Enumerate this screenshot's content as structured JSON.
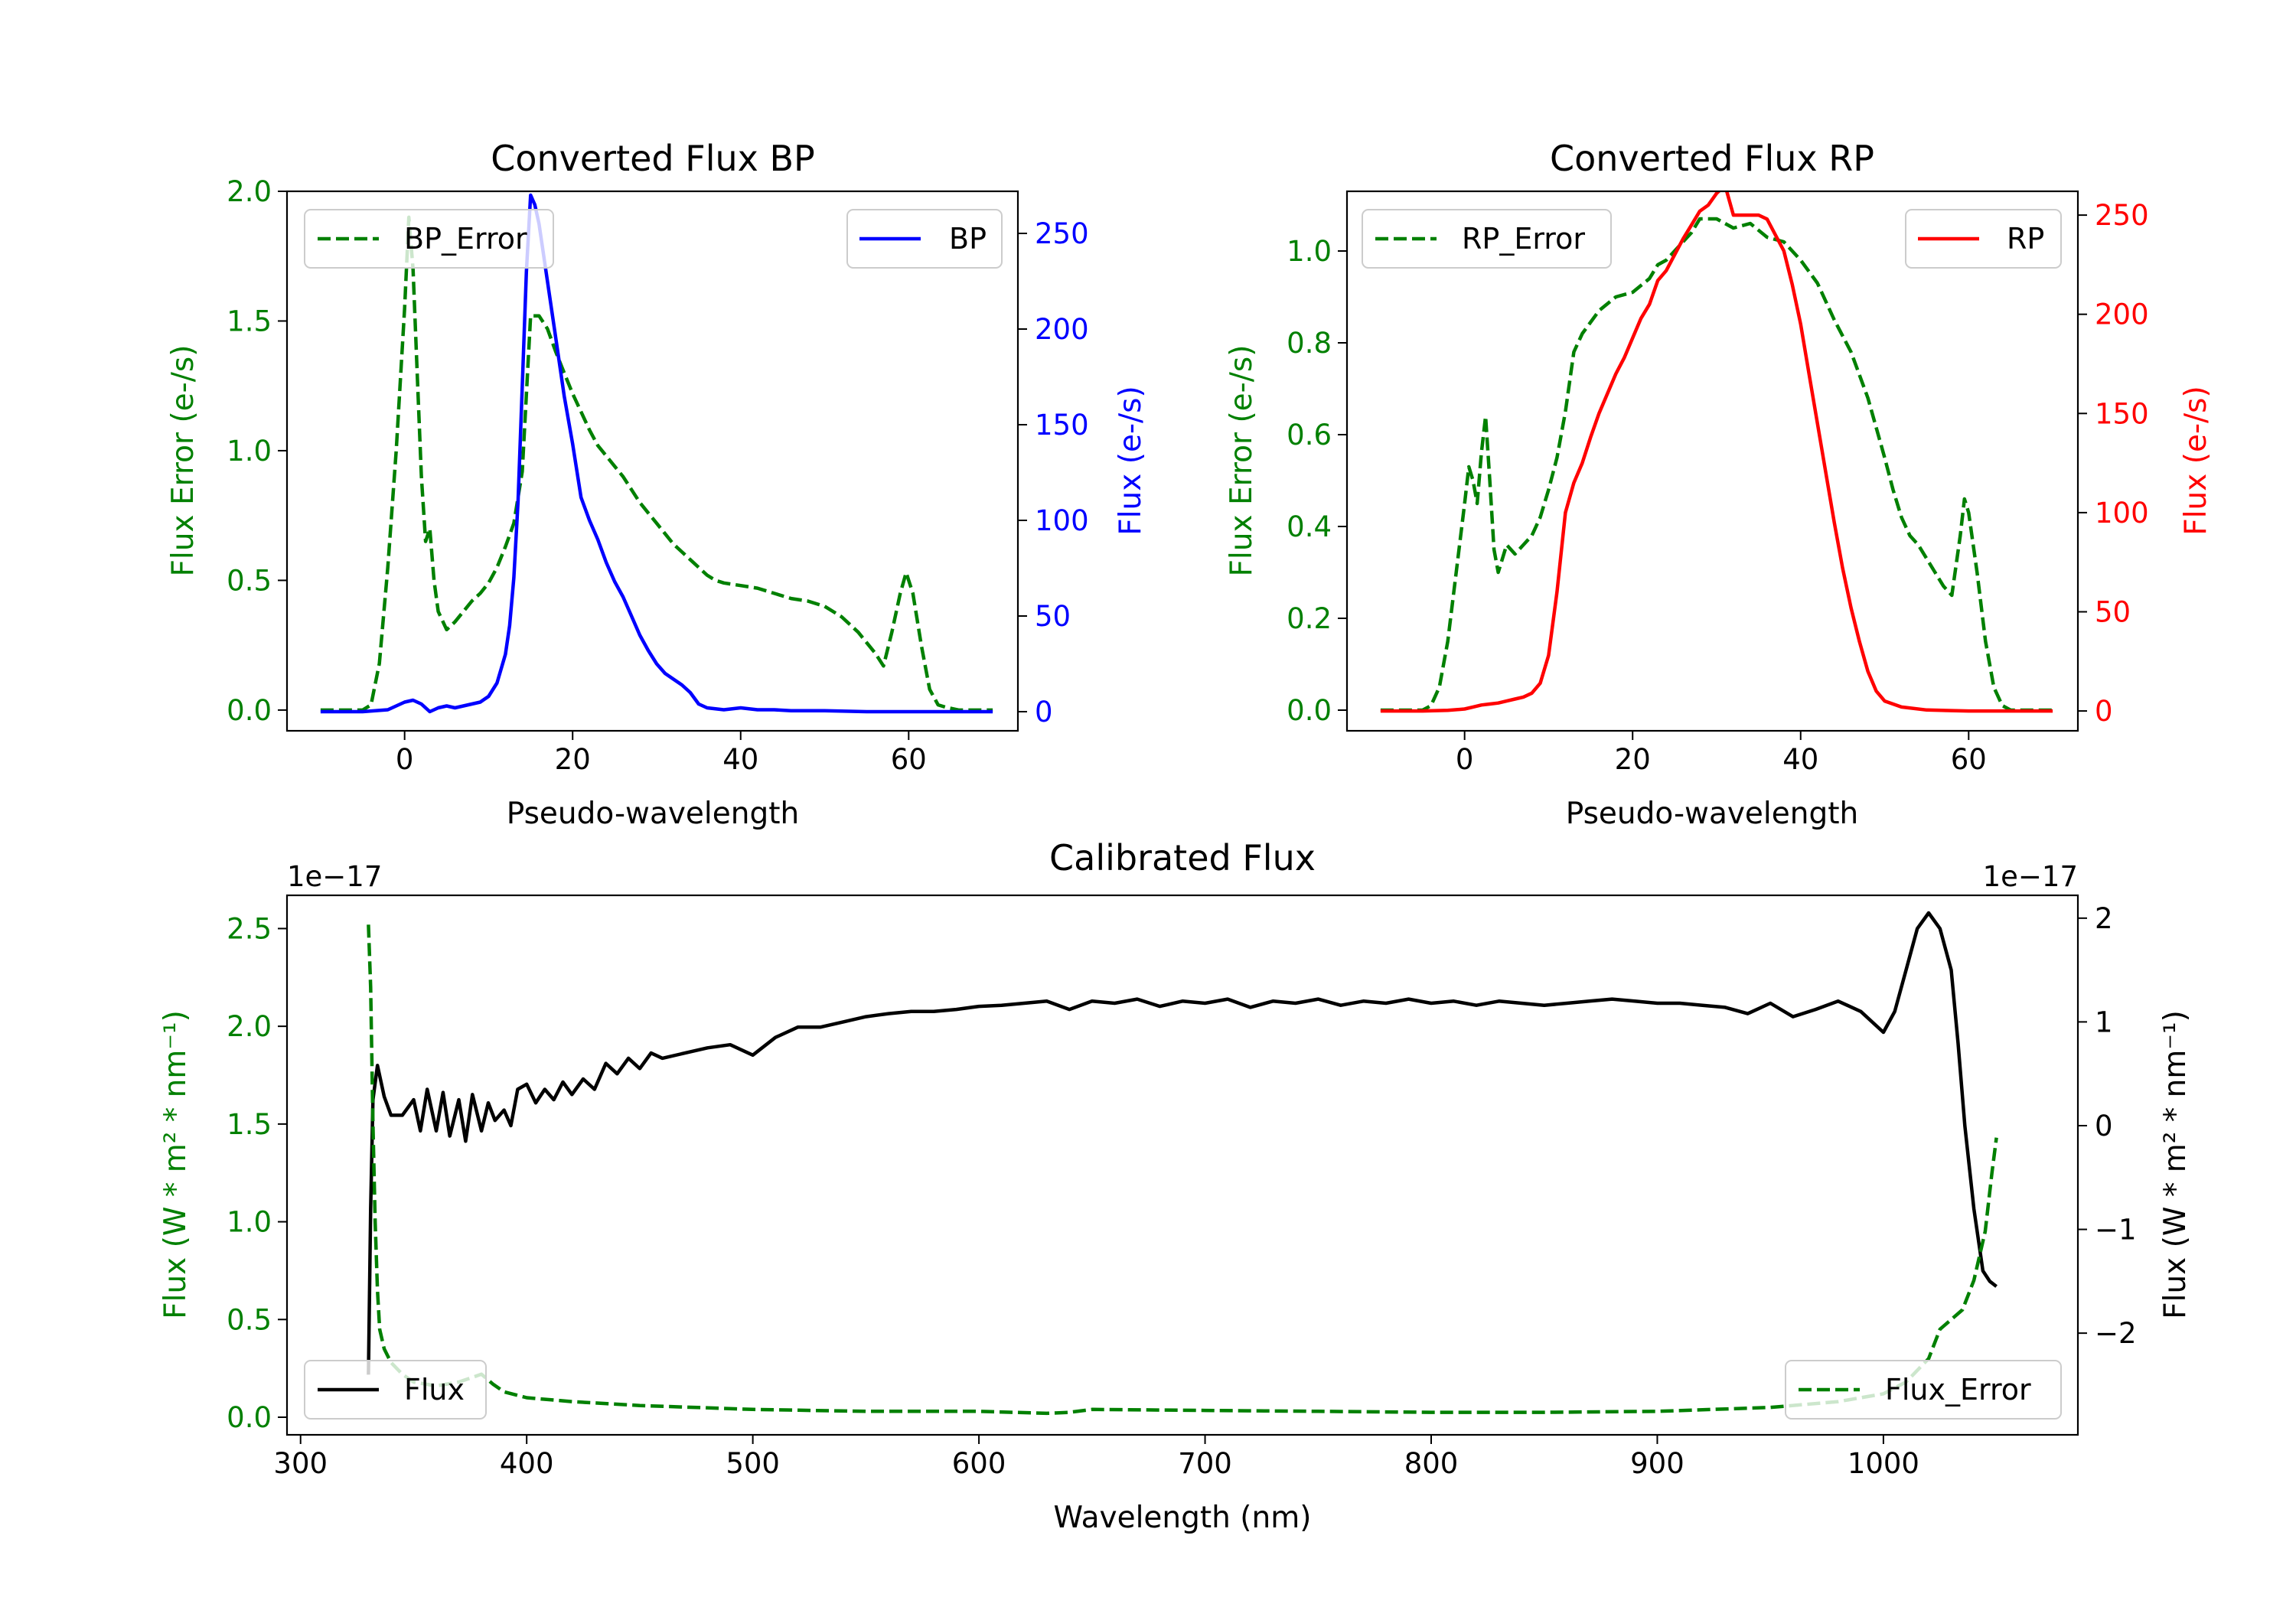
{
  "colors": {
    "green": "#008000",
    "blue": "#0000ff",
    "red": "#ff0000",
    "black": "#000000"
  },
  "chart_data": [
    {
      "id": "bp",
      "type": "line",
      "title": "Converted Flux BP",
      "xlabel": "Pseudo-wavelength",
      "xlim": [
        -14,
        73
      ],
      "xticks": [
        0,
        20,
        40,
        60
      ],
      "left_axis": {
        "label": "Flux Error (e-/s)",
        "color": "#008000",
        "ylim": [
          -0.08,
          2.0
        ],
        "ticks": [
          0.0,
          0.5,
          1.0,
          1.5,
          2.0
        ],
        "tick_labels": [
          "0.0",
          "0.5",
          "1.0",
          "1.5",
          "2.0"
        ]
      },
      "right_axis": {
        "label": "Flux (e-/s)",
        "color": "#0000ff",
        "ylim": [
          -10,
          272
        ],
        "ticks": [
          0,
          50,
          100,
          150,
          200,
          250
        ],
        "tick_labels": [
          "0",
          "50",
          "100",
          "150",
          "200",
          "250"
        ]
      },
      "series": [
        {
          "name": "BP_Error",
          "axis": "left",
          "style": "dashed",
          "color": "#008000",
          "x": [
            -10,
            -5,
            -4,
            -3,
            -2,
            -1,
            0,
            0.5,
            1,
            1.5,
            2,
            2.5,
            3,
            3.5,
            4,
            5,
            6,
            7,
            8,
            9,
            10,
            11,
            12,
            13,
            14,
            15,
            16,
            17,
            18,
            19,
            20,
            21,
            22,
            23,
            24,
            25,
            26,
            27,
            28,
            29,
            30,
            31,
            32,
            33,
            34,
            35,
            36,
            37,
            38,
            40,
            42,
            44,
            46,
            48,
            50,
            52,
            54,
            55,
            56,
            57,
            58,
            59,
            59.7,
            60.5,
            61.5,
            62.5,
            63.5,
            64.5,
            66,
            70
          ],
          "values": [
            0,
            0,
            0.02,
            0.18,
            0.55,
            1.0,
            1.55,
            1.9,
            1.7,
            1.3,
            0.9,
            0.65,
            0.7,
            0.5,
            0.38,
            0.31,
            0.34,
            0.38,
            0.42,
            0.45,
            0.49,
            0.55,
            0.63,
            0.72,
            0.92,
            1.52,
            1.52,
            1.47,
            1.38,
            1.3,
            1.22,
            1.15,
            1.08,
            1.02,
            0.98,
            0.94,
            0.9,
            0.85,
            0.8,
            0.76,
            0.72,
            0.68,
            0.64,
            0.61,
            0.58,
            0.55,
            0.52,
            0.5,
            0.49,
            0.48,
            0.47,
            0.45,
            0.43,
            0.42,
            0.4,
            0.36,
            0.3,
            0.26,
            0.22,
            0.17,
            0.3,
            0.45,
            0.53,
            0.45,
            0.25,
            0.08,
            0.02,
            0.01,
            0,
            0
          ]
        },
        {
          "name": "BP",
          "axis": "right",
          "style": "solid",
          "color": "#0000ff",
          "x": [
            -10,
            -5,
            -2,
            0,
            1,
            2,
            3,
            4,
            5,
            6,
            7,
            8,
            9,
            10,
            11,
            12,
            12.5,
            13,
            13.5,
            14,
            14.5,
            15,
            15.5,
            16,
            17,
            18,
            19,
            20,
            21,
            22,
            23,
            24,
            25,
            26,
            27,
            28,
            29,
            30,
            31,
            32,
            33,
            34,
            35,
            36,
            38,
            40,
            42,
            44,
            46,
            48,
            50,
            55,
            60,
            70
          ],
          "values": [
            0,
            0,
            1,
            5,
            6,
            4,
            0,
            2,
            3,
            2,
            3,
            4,
            5,
            8,
            15,
            30,
            45,
            70,
            110,
            170,
            230,
            270,
            265,
            255,
            225,
            195,
            165,
            140,
            112,
            100,
            90,
            78,
            68,
            60,
            50,
            40,
            32,
            25,
            20,
            17,
            14,
            10,
            4,
            2,
            1,
            2,
            1,
            1,
            0.5,
            0.5,
            0.5,
            0,
            0,
            0
          ]
        }
      ],
      "legends": [
        {
          "placement": "upper-left",
          "label": "BP_Error",
          "style": "dashed",
          "color": "#008000"
        },
        {
          "placement": "upper-right",
          "label": "BP",
          "style": "solid",
          "color": "#0000ff"
        }
      ]
    },
    {
      "id": "rp",
      "type": "line",
      "title": "Converted Flux RP",
      "xlabel": "Pseudo-wavelength",
      "xlim": [
        -14,
        73
      ],
      "xticks": [
        0,
        20,
        40,
        60
      ],
      "left_axis": {
        "label": "Flux Error (e-/s)",
        "color": "#008000",
        "ylim": [
          -0.045,
          1.13
        ],
        "ticks": [
          0.0,
          0.2,
          0.4,
          0.6,
          0.8,
          1.0
        ],
        "tick_labels": [
          "0.0",
          "0.2",
          "0.4",
          "0.6",
          "0.8",
          "1.0"
        ]
      },
      "right_axis": {
        "label": "Flux (e-/s)",
        "color": "#ff0000",
        "ylim": [
          -10,
          262
        ],
        "ticks": [
          0,
          50,
          100,
          150,
          200,
          250
        ],
        "tick_labels": [
          "0",
          "50",
          "100",
          "150",
          "200",
          "250"
        ]
      },
      "series": [
        {
          "name": "RP_Error",
          "axis": "left",
          "style": "dashed",
          "color": "#008000",
          "x": [
            -10,
            -5,
            -4,
            -3,
            -2,
            -1,
            0,
            0.5,
            1,
            1.5,
            2,
            2.5,
            3,
            3.5,
            4,
            5,
            6,
            7,
            8,
            9,
            10,
            11,
            12,
            13,
            14,
            16,
            18,
            20,
            22,
            23,
            24,
            25,
            26,
            27,
            28,
            29,
            30,
            32,
            34,
            36,
            38,
            40,
            42,
            44,
            46,
            48,
            50,
            51,
            52,
            53,
            54,
            55,
            56,
            57,
            58,
            59,
            59.5,
            60,
            61,
            62,
            63,
            64,
            65,
            70
          ],
          "values": [
            0,
            0,
            0.01,
            0.05,
            0.15,
            0.3,
            0.45,
            0.53,
            0.5,
            0.45,
            0.56,
            0.64,
            0.5,
            0.35,
            0.3,
            0.36,
            0.34,
            0.36,
            0.38,
            0.42,
            0.48,
            0.55,
            0.65,
            0.78,
            0.82,
            0.87,
            0.9,
            0.91,
            0.94,
            0.97,
            0.98,
            1.0,
            1.02,
            1.04,
            1.07,
            1.07,
            1.07,
            1.05,
            1.06,
            1.03,
            1.02,
            0.98,
            0.93,
            0.85,
            0.78,
            0.68,
            0.55,
            0.48,
            0.42,
            0.38,
            0.36,
            0.33,
            0.3,
            0.27,
            0.25,
            0.38,
            0.46,
            0.43,
            0.3,
            0.15,
            0.05,
            0.01,
            0,
            0
          ]
        },
        {
          "name": "RP",
          "axis": "right",
          "style": "solid",
          "color": "#ff0000",
          "x": [
            -10,
            -5,
            -2,
            0,
            1,
            2,
            3,
            4,
            5,
            6,
            7,
            8,
            9,
            10,
            11,
            12,
            13,
            14,
            15,
            16,
            17,
            18,
            19,
            20,
            21,
            22,
            23,
            24,
            25,
            26,
            27,
            28,
            29,
            30,
            31,
            32,
            33,
            34,
            35,
            36,
            37,
            38,
            39,
            40,
            41,
            42,
            43,
            44,
            45,
            46,
            47,
            48,
            49,
            50,
            52,
            55,
            60,
            70
          ],
          "values": [
            0,
            0,
            0.3,
            1,
            2,
            3,
            3.5,
            4,
            5,
            6,
            7,
            9,
            14,
            28,
            60,
            100,
            115,
            125,
            138,
            150,
            160,
            170,
            178,
            188,
            198,
            205,
            217,
            222,
            230,
            238,
            245,
            252,
            255,
            261,
            265,
            250,
            250,
            250,
            250,
            248,
            240,
            232,
            215,
            195,
            170,
            145,
            120,
            95,
            72,
            52,
            35,
            20,
            10,
            5,
            2,
            0.5,
            0,
            0
          ]
        }
      ],
      "legends": [
        {
          "placement": "upper-left",
          "label": "RP_Error",
          "style": "dashed",
          "color": "#008000"
        },
        {
          "placement": "upper-right",
          "label": "RP",
          "style": "solid",
          "color": "#ff0000"
        }
      ]
    },
    {
      "id": "cal",
      "type": "line",
      "title": "Calibrated Flux",
      "xlabel": "Wavelength (nm)",
      "xlim": [
        294,
        1086
      ],
      "xticks": [
        300,
        400,
        500,
        600,
        700,
        800,
        900,
        1000
      ],
      "left_axis": {
        "label": "Flux (W * m² * nm⁻¹)",
        "color": "#008000",
        "offset_text": "1e−17",
        "ylim": [
          -0.09,
          2.67
        ],
        "ticks": [
          0.0,
          0.5,
          1.0,
          1.5,
          2.0,
          2.5
        ],
        "tick_labels": [
          "0.0",
          "0.5",
          "1.0",
          "1.5",
          "2.0",
          "2.5"
        ]
      },
      "right_axis": {
        "label": "Flux (W * m² * nm⁻¹)",
        "color": "#000000",
        "offset_text": "1e−17",
        "ylim": [
          -2.98,
          2.22
        ],
        "ticks": [
          -2,
          -1,
          0,
          1,
          2
        ],
        "tick_labels": [
          "−2",
          "−1",
          "0",
          "1",
          "2"
        ]
      },
      "series": [
        {
          "name": "Flux",
          "axis": "right",
          "style": "solid",
          "color": "#000000",
          "x": [
            330,
            331,
            332,
            334,
            337,
            340,
            345,
            350,
            353,
            356,
            360,
            363,
            366,
            370,
            373,
            376,
            380,
            383,
            386,
            390,
            393,
            396,
            400,
            404,
            408,
            412,
            416,
            420,
            425,
            430,
            435,
            440,
            445,
            450,
            455,
            460,
            470,
            480,
            490,
            500,
            510,
            520,
            530,
            540,
            550,
            560,
            570,
            580,
            590,
            600,
            610,
            620,
            630,
            640,
            650,
            660,
            670,
            680,
            690,
            700,
            710,
            720,
            730,
            740,
            750,
            760,
            770,
            780,
            790,
            800,
            810,
            820,
            830,
            840,
            850,
            860,
            870,
            880,
            890,
            900,
            910,
            920,
            930,
            940,
            950,
            960,
            970,
            980,
            990,
            1000,
            1005,
            1010,
            1015,
            1020,
            1025,
            1030,
            1033,
            1036,
            1040,
            1044,
            1047,
            1050
          ],
          "values": [
            -2.4,
            -0.8,
            0.25,
            0.58,
            0.28,
            0.1,
            0.1,
            0.25,
            -0.05,
            0.35,
            -0.05,
            0.32,
            -0.1,
            0.25,
            -0.15,
            0.3,
            -0.05,
            0.22,
            0.05,
            0.15,
            0.0,
            0.35,
            0.4,
            0.22,
            0.35,
            0.25,
            0.42,
            0.3,
            0.45,
            0.35,
            0.6,
            0.5,
            0.65,
            0.55,
            0.7,
            0.65,
            0.7,
            0.75,
            0.78,
            0.68,
            0.85,
            0.95,
            0.95,
            1.0,
            1.05,
            1.08,
            1.1,
            1.1,
            1.12,
            1.15,
            1.16,
            1.18,
            1.2,
            1.12,
            1.2,
            1.18,
            1.22,
            1.15,
            1.2,
            1.18,
            1.22,
            1.14,
            1.2,
            1.18,
            1.22,
            1.16,
            1.2,
            1.18,
            1.22,
            1.18,
            1.2,
            1.16,
            1.2,
            1.18,
            1.16,
            1.18,
            1.2,
            1.22,
            1.2,
            1.18,
            1.18,
            1.16,
            1.14,
            1.08,
            1.18,
            1.05,
            1.12,
            1.2,
            1.1,
            0.9,
            1.1,
            1.5,
            1.9,
            2.05,
            1.9,
            1.5,
            0.8,
            0.0,
            -0.8,
            -1.4,
            -1.5,
            -1.55
          ]
        },
        {
          "name": "Flux_Error",
          "axis": "left",
          "style": "dashed",
          "color": "#008000",
          "x": [
            330,
            331,
            332,
            333,
            334,
            335,
            337,
            340,
            345,
            350,
            360,
            370,
            380,
            385,
            390,
            400,
            420,
            450,
            500,
            550,
            600,
            630,
            640,
            650,
            700,
            750,
            800,
            850,
            900,
            950,
            980,
            1000,
            1010,
            1020,
            1025,
            1030,
            1035,
            1040,
            1045,
            1048,
            1050
          ],
          "values": [
            2.52,
            2.2,
            1.5,
            1.0,
            0.65,
            0.45,
            0.35,
            0.28,
            0.22,
            0.18,
            0.16,
            0.18,
            0.22,
            0.17,
            0.13,
            0.1,
            0.08,
            0.06,
            0.04,
            0.03,
            0.03,
            0.02,
            0.025,
            0.04,
            0.035,
            0.03,
            0.025,
            0.025,
            0.03,
            0.05,
            0.08,
            0.12,
            0.18,
            0.3,
            0.45,
            0.5,
            0.55,
            0.7,
            0.95,
            1.25,
            1.43
          ]
        }
      ],
      "legends": [
        {
          "placement": "lower-left",
          "label": "Flux",
          "style": "solid",
          "color": "#000000"
        },
        {
          "placement": "lower-right",
          "label": "Flux_Error",
          "style": "dashed",
          "color": "#008000"
        }
      ]
    }
  ]
}
